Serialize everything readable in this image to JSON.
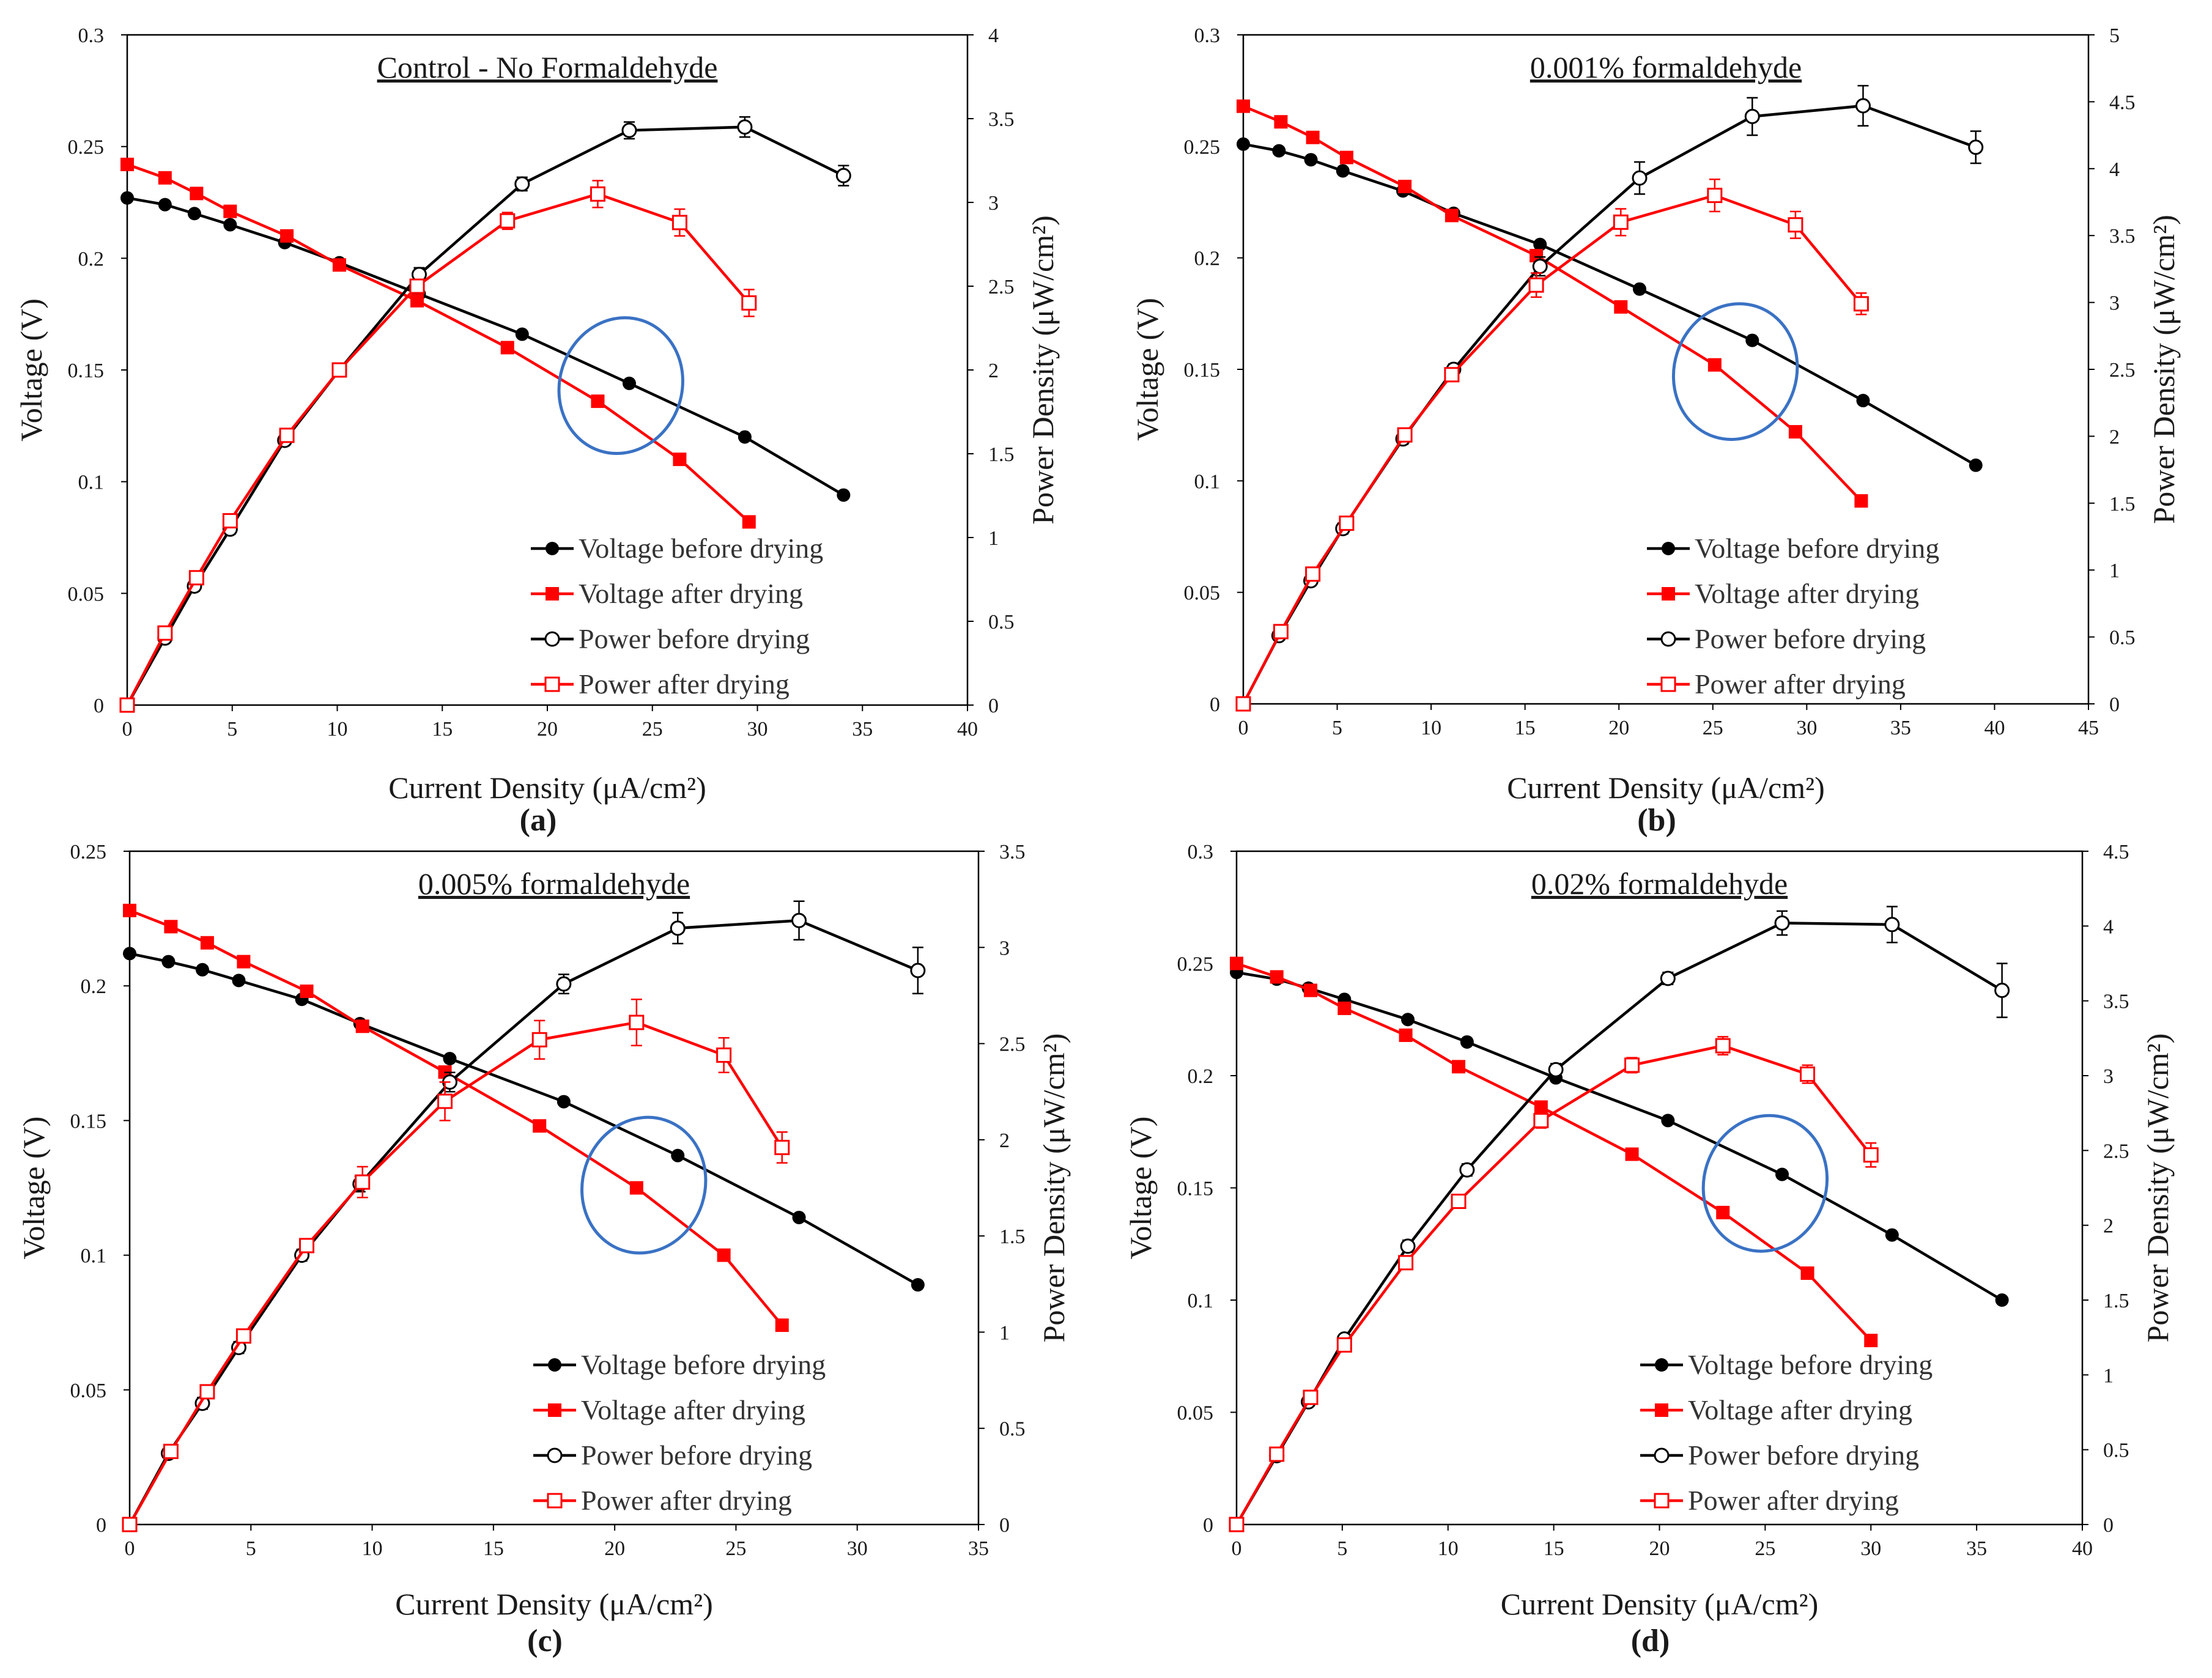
{
  "chart_data": [
    {
      "type": "line",
      "panel_label": "(a)",
      "title": "Control - No Formaldehyde",
      "xlabel": "Current Density (μA/cm²)",
      "ylabel": "Voltage (V)",
      "y2label": "Power Density (μW/cm²)",
      "xlim": [
        0,
        40
      ],
      "xstep": 5,
      "ylim": [
        0,
        0.3
      ],
      "ystep": 0.05,
      "y2lim": [
        0,
        4
      ],
      "y2step": 0.5,
      "x_tick_labels": [
        "0",
        "5",
        "10",
        "15",
        "20",
        "25",
        "30",
        "35",
        "40"
      ],
      "y_tick_labels": [
        "0",
        "0.05",
        "0.1",
        "0.15",
        "0.2",
        "0.25",
        "0.3"
      ],
      "y2_tick_labels": [
        "0",
        "0.5",
        "1",
        "1.5",
        "2",
        "2.5",
        "3",
        "3.5",
        "4"
      ],
      "highlight_ellipse": {
        "cx": 23.5,
        "cy": 0.143
      },
      "series": [
        {
          "name": "Voltage before drying",
          "axis": "left",
          "color": "#000000",
          "marker": "filled-circle",
          "x": [
            0,
            1.8,
            3.2,
            4.9,
            7.5,
            10.1,
            13.9,
            18.8,
            23.9,
            29.4,
            34.1
          ],
          "y": [
            0.227,
            0.224,
            0.22,
            0.215,
            0.207,
            0.198,
            0.184,
            0.166,
            0.144,
            0.12,
            0.094
          ]
        },
        {
          "name": "Voltage after drying",
          "axis": "left",
          "color": "#ff0000",
          "marker": "filled-square",
          "x": [
            0,
            1.8,
            3.3,
            4.9,
            7.6,
            10.1,
            13.8,
            18.1,
            22.4,
            26.3,
            29.6
          ],
          "y": [
            0.242,
            0.236,
            0.229,
            0.221,
            0.21,
            0.197,
            0.181,
            0.16,
            0.136,
            0.11,
            0.082
          ]
        },
        {
          "name": "Power before drying",
          "axis": "right",
          "color": "#000000",
          "marker": "open-circle",
          "x": [
            0,
            1.8,
            3.2,
            4.9,
            7.5,
            10.1,
            13.9,
            18.8,
            23.9,
            29.4,
            34.1
          ],
          "y": [
            0,
            0.4,
            0.71,
            1.05,
            1.58,
            2.0,
            2.57,
            3.11,
            3.43,
            3.45,
            3.16
          ],
          "err": [
            0,
            0.02,
            0.03,
            0.03,
            0.03,
            0.03,
            0.04,
            0.04,
            0.05,
            0.06,
            0.06
          ]
        },
        {
          "name": "Power after drying",
          "axis": "right",
          "color": "#ff0000",
          "marker": "open-square",
          "x": [
            0,
            1.8,
            3.3,
            4.9,
            7.6,
            10.1,
            13.8,
            18.1,
            22.4,
            26.3,
            29.6
          ],
          "y": [
            0,
            0.43,
            0.76,
            1.1,
            1.61,
            2.0,
            2.5,
            2.89,
            3.05,
            2.88,
            2.4
          ],
          "err": [
            0,
            0.02,
            0.03,
            0.03,
            0.03,
            0.03,
            0.04,
            0.05,
            0.08,
            0.08,
            0.08
          ]
        }
      ]
    },
    {
      "type": "line",
      "panel_label": "(b)",
      "title": "0.001% formaldehyde",
      "xlabel": "Current Density (μA/cm²)",
      "ylabel": "Voltage (V)",
      "y2label": "Power Density (μW/cm²)",
      "xlim": [
        0,
        45
      ],
      "xstep": 5,
      "ylim": [
        0,
        0.3
      ],
      "ystep": 0.05,
      "y2lim": [
        0,
        5
      ],
      "y2step": 0.5,
      "x_tick_labels": [
        "0",
        "5",
        "10",
        "15",
        "20",
        "25",
        "30",
        "35",
        "40",
        "45"
      ],
      "y_tick_labels": [
        "0",
        "0.05",
        "0.1",
        "0.15",
        "0.2",
        "0.25",
        "0.3"
      ],
      "y2_tick_labels": [
        "0",
        "0.5",
        "1",
        "1.5",
        "2",
        "2.5",
        "3",
        "3.5",
        "4",
        "4.5",
        "5"
      ],
      "highlight_ellipse": {
        "cx": 26.2,
        "cy": 0.149
      },
      "series": [
        {
          "name": "Voltage before drying",
          "axis": "left",
          "color": "#000000",
          "marker": "filled-circle",
          "x": [
            0,
            1.9,
            3.6,
            5.3,
            8.5,
            11.2,
            15.8,
            21.1,
            27.1,
            33.0,
            39.0
          ],
          "y": [
            0.251,
            0.248,
            0.244,
            0.239,
            0.23,
            0.22,
            0.206,
            0.186,
            0.163,
            0.136,
            0.107
          ]
        },
        {
          "name": "Voltage after drying",
          "axis": "left",
          "color": "#ff0000",
          "marker": "filled-square",
          "x": [
            0,
            2.0,
            3.7,
            5.5,
            8.6,
            11.1,
            15.6,
            20.1,
            25.1,
            29.4,
            32.9
          ],
          "y": [
            0.268,
            0.261,
            0.254,
            0.245,
            0.232,
            0.219,
            0.201,
            0.178,
            0.152,
            0.122,
            0.091
          ]
        },
        {
          "name": "Power before drying",
          "axis": "right",
          "color": "#000000",
          "marker": "open-circle",
          "x": [
            0,
            1.9,
            3.6,
            5.3,
            8.5,
            11.2,
            15.8,
            21.1,
            27.1,
            33.0,
            39.0
          ],
          "y": [
            0,
            0.51,
            0.92,
            1.31,
            1.98,
            2.5,
            3.27,
            3.93,
            4.39,
            4.47,
            4.16
          ],
          "err": [
            0,
            0.02,
            0.03,
            0.04,
            0.04,
            0.04,
            0.07,
            0.12,
            0.14,
            0.15,
            0.12
          ]
        },
        {
          "name": "Power after drying",
          "axis": "right",
          "color": "#ff0000",
          "marker": "open-square",
          "x": [
            0,
            2.0,
            3.7,
            5.5,
            8.6,
            11.1,
            15.6,
            20.1,
            25.1,
            29.4,
            32.9
          ],
          "y": [
            0,
            0.54,
            0.97,
            1.35,
            2.01,
            2.46,
            3.13,
            3.6,
            3.8,
            3.58,
            2.99
          ],
          "err": [
            0,
            0.02,
            0.03,
            0.04,
            0.04,
            0.04,
            0.09,
            0.1,
            0.12,
            0.1,
            0.08
          ]
        }
      ]
    },
    {
      "type": "line",
      "panel_label": "(c)",
      "title": "0.005% formaldehyde",
      "xlabel": "Current Density (μA/cm²)",
      "ylabel": "Voltage (V)",
      "y2label": "Power Density (μW/cm²)",
      "xlim": [
        0,
        35
      ],
      "xstep": 5,
      "ylim": [
        0,
        0.25
      ],
      "ystep": 0.05,
      "y2lim": [
        0,
        3.5
      ],
      "y2step": 0.5,
      "x_tick_labels": [
        "0",
        "5",
        "10",
        "15",
        "20",
        "25",
        "30",
        "35"
      ],
      "y_tick_labels": [
        "0",
        "0.05",
        "0.1",
        "0.15",
        "0.2",
        "0.25"
      ],
      "y2_tick_labels": [
        "0",
        "0.5",
        "1",
        "1.5",
        "2",
        "2.5",
        "3",
        "3.5"
      ],
      "highlight_ellipse": {
        "cx": 21.2,
        "cy": 0.126
      },
      "series": [
        {
          "name": "Voltage before drying",
          "axis": "left",
          "color": "#000000",
          "marker": "filled-circle",
          "x": [
            0,
            1.6,
            3.0,
            4.5,
            7.1,
            9.5,
            13.2,
            17.9,
            22.6,
            27.6,
            32.5
          ],
          "y": [
            0.212,
            0.209,
            0.206,
            0.202,
            0.195,
            0.186,
            0.173,
            0.157,
            0.137,
            0.114,
            0.089
          ]
        },
        {
          "name": "Voltage after drying",
          "axis": "left",
          "color": "#ff0000",
          "marker": "filled-square",
          "x": [
            0,
            1.7,
            3.2,
            4.7,
            7.3,
            9.6,
            13.0,
            16.9,
            20.9,
            24.5,
            26.9
          ],
          "y": [
            0.228,
            0.222,
            0.216,
            0.209,
            0.198,
            0.185,
            0.168,
            0.148,
            0.125,
            0.1,
            0.074
          ]
        },
        {
          "name": "Power before drying",
          "axis": "right",
          "color": "#000000",
          "marker": "open-circle",
          "x": [
            0,
            1.6,
            3.0,
            4.5,
            7.1,
            9.5,
            13.2,
            17.9,
            22.6,
            27.6,
            32.5
          ],
          "y": [
            0,
            0.37,
            0.63,
            0.92,
            1.4,
            1.77,
            2.3,
            2.81,
            3.1,
            3.14,
            2.88
          ],
          "err": [
            0,
            0.02,
            0.03,
            0.03,
            0.03,
            0.04,
            0.05,
            0.05,
            0.08,
            0.1,
            0.12
          ]
        },
        {
          "name": "Power after drying",
          "axis": "right",
          "color": "#ff0000",
          "marker": "open-square",
          "x": [
            0,
            1.7,
            3.2,
            4.7,
            7.3,
            9.6,
            13.0,
            16.9,
            20.9,
            24.5,
            26.9
          ],
          "y": [
            0,
            0.38,
            0.69,
            0.98,
            1.45,
            1.78,
            2.2,
            2.52,
            2.61,
            2.44,
            1.96
          ],
          "err": [
            0,
            0.02,
            0.03,
            0.03,
            0.03,
            0.08,
            0.1,
            0.1,
            0.12,
            0.09,
            0.08
          ]
        }
      ]
    },
    {
      "type": "line",
      "panel_label": "(d)",
      "title": "0.02% formaldehyde",
      "xlabel": "Current Density (μA/cm²)",
      "ylabel": "Voltage (V)",
      "y2label": "Power Density (μW/cm²)",
      "xlim": [
        0,
        40
      ],
      "xstep": 5,
      "ylim": [
        0,
        0.3
      ],
      "ystep": 0.05,
      "y2lim": [
        0,
        4.5
      ],
      "y2step": 0.5,
      "x_tick_labels": [
        "0",
        "5",
        "10",
        "15",
        "20",
        "25",
        "30",
        "35",
        "40"
      ],
      "y_tick_labels": [
        "0",
        "0.05",
        "0.1",
        "0.15",
        "0.2",
        "0.25",
        "0.3"
      ],
      "y2_tick_labels": [
        "0",
        "0.5",
        "1",
        "1.5",
        "2",
        "2.5",
        "3",
        "3.5",
        "4",
        "4.5"
      ],
      "highlight_ellipse": {
        "cx": 25.0,
        "cy": 0.152
      },
      "series": [
        {
          "name": "Voltage before drying",
          "axis": "left",
          "color": "#000000",
          "marker": "filled-circle",
          "x": [
            0,
            1.9,
            3.4,
            5.1,
            8.1,
            10.9,
            15.1,
            20.4,
            25.8,
            31.0,
            36.2
          ],
          "y": [
            0.246,
            0.243,
            0.239,
            0.234,
            0.225,
            0.215,
            0.199,
            0.18,
            0.156,
            0.129,
            0.1
          ]
        },
        {
          "name": "Voltage after drying",
          "axis": "left",
          "color": "#ff0000",
          "marker": "filled-square",
          "x": [
            0,
            1.9,
            3.5,
            5.1,
            8.0,
            10.5,
            14.4,
            18.7,
            23.0,
            27.0,
            30.0
          ],
          "y": [
            0.25,
            0.244,
            0.238,
            0.23,
            0.218,
            0.204,
            0.186,
            0.165,
            0.139,
            0.112,
            0.082
          ]
        },
        {
          "name": "Power before drying",
          "axis": "right",
          "color": "#000000",
          "marker": "open-circle",
          "x": [
            0,
            1.9,
            3.4,
            5.1,
            8.1,
            10.9,
            15.1,
            20.4,
            25.8,
            31.0,
            36.2
          ],
          "y": [
            0,
            0.46,
            0.82,
            1.24,
            1.86,
            2.37,
            3.04,
            3.65,
            4.02,
            4.01,
            3.57
          ],
          "err": [
            0,
            0.02,
            0.03,
            0.03,
            0.04,
            0.04,
            0.04,
            0.04,
            0.08,
            0.12,
            0.18
          ]
        },
        {
          "name": "Power after drying",
          "axis": "right",
          "color": "#ff0000",
          "marker": "open-square",
          "x": [
            0,
            1.9,
            3.5,
            5.1,
            8.0,
            10.5,
            14.4,
            18.7,
            23.0,
            27.0,
            30.0
          ],
          "y": [
            0,
            0.47,
            0.85,
            1.2,
            1.75,
            2.16,
            2.7,
            3.07,
            3.2,
            3.01,
            2.47
          ],
          "err": [
            0,
            0.02,
            0.03,
            0.03,
            0.03,
            0.04,
            0.05,
            0.05,
            0.06,
            0.06,
            0.08
          ]
        }
      ]
    }
  ]
}
